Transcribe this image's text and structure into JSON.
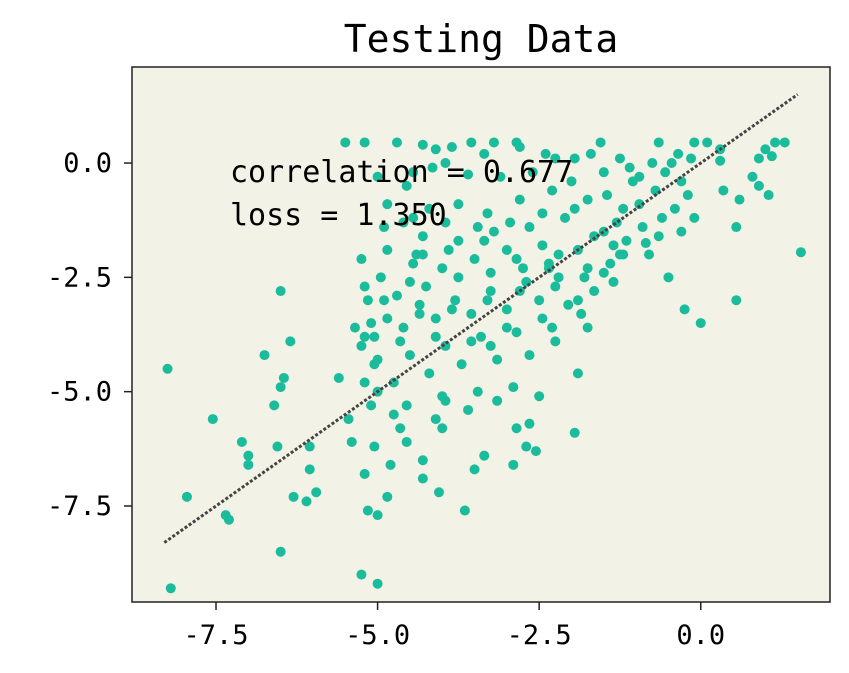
{
  "chart_data": {
    "type": "scatter",
    "title": "Testing Data",
    "xlabel": "",
    "ylabel": "",
    "xlim": [
      -8.8,
      2.0
    ],
    "ylim": [
      -9.6,
      2.1
    ],
    "x_ticks": [
      -7.5,
      -5.0,
      -2.5,
      0.0
    ],
    "x_tick_labels": [
      "-7.5",
      "-5.0",
      "-2.5",
      "0.0"
    ],
    "y_ticks": [
      0.0,
      -2.5,
      -5.0,
      -7.5
    ],
    "y_tick_labels": [
      "0.0",
      "-2.5",
      "-5.0",
      "-7.5"
    ],
    "grid": false,
    "annotations": [
      "correlation = 0.677",
      "loss = 1.350"
    ],
    "colors": {
      "points": "#1abc9c",
      "background": "#f2f2e6",
      "fit_line": "#444444"
    },
    "fit_line": {
      "style": "dotted",
      "x": [
        -8.3,
        1.5
      ],
      "y": [
        -8.3,
        1.5
      ]
    },
    "points": [
      [
        -8.25,
        -4.5
      ],
      [
        -8.2,
        -9.3
      ],
      [
        -7.95,
        -7.3
      ],
      [
        -7.55,
        -5.6
      ],
      [
        -7.3,
        -7.8
      ],
      [
        -7.35,
        -7.7
      ],
      [
        -7.1,
        -6.1
      ],
      [
        -7.0,
        -6.4
      ],
      [
        -7.0,
        -6.6
      ],
      [
        -6.75,
        -4.2
      ],
      [
        -6.6,
        -5.3
      ],
      [
        -6.55,
        -6.2
      ],
      [
        -6.5,
        -4.9
      ],
      [
        -6.45,
        -4.7
      ],
      [
        -6.5,
        -2.8
      ],
      [
        -6.5,
        -8.5
      ],
      [
        -6.35,
        -3.9
      ],
      [
        -6.3,
        -7.3
      ],
      [
        -6.1,
        -7.4
      ],
      [
        -6.05,
        -6.2
      ],
      [
        -6.05,
        -6.7
      ],
      [
        -5.95,
        -7.2
      ],
      [
        -5.6,
        -4.7
      ],
      [
        -5.4,
        -6.1
      ],
      [
        -5.45,
        -5.6
      ],
      [
        -5.35,
        -3.6
      ],
      [
        -5.2,
        -3.8
      ],
      [
        -5.15,
        -7.6
      ],
      [
        -5.2,
        -6.8
      ],
      [
        -5.25,
        -9.0
      ],
      [
        -5.2,
        -2.7
      ],
      [
        -5.0,
        -9.2
      ],
      [
        -5.0,
        -7.7
      ],
      [
        -5.05,
        -6.2
      ],
      [
        -5.1,
        -5.3
      ],
      [
        -5.05,
        -4.4
      ],
      [
        -5.0,
        -0.3
      ],
      [
        -5.25,
        -2.1
      ],
      [
        -5.5,
        0.45
      ],
      [
        -5.2,
        0.45
      ],
      [
        -4.85,
        -7.3
      ],
      [
        -4.8,
        -6.6
      ],
      [
        -4.75,
        -5.5
      ],
      [
        -4.55,
        -6.1
      ],
      [
        -4.45,
        -2.2
      ],
      [
        -4.3,
        -6.5
      ],
      [
        -4.3,
        -6.9
      ],
      [
        -4.3,
        -2.0
      ],
      [
        -4.05,
        -7.2
      ],
      [
        -4.0,
        -5.8
      ],
      [
        -3.95,
        -5.2
      ],
      [
        -3.65,
        -7.6
      ],
      [
        -3.5,
        -6.7
      ],
      [
        -3.35,
        -6.4
      ],
      [
        -3.25,
        -4.0
      ],
      [
        -3.15,
        -5.2
      ],
      [
        -2.9,
        -6.6
      ],
      [
        -2.85,
        -5.8
      ],
      [
        -2.7,
        -6.2
      ],
      [
        -2.65,
        -5.7
      ],
      [
        -2.55,
        -6.3
      ],
      [
        -2.5,
        -5.1
      ],
      [
        -2.35,
        -2.2
      ],
      [
        -2.25,
        -3.9
      ],
      [
        -1.95,
        -5.9
      ],
      [
        -1.85,
        -3.3
      ],
      [
        -1.75,
        -3.6
      ],
      [
        -1.9,
        -4.6
      ],
      [
        -1.5,
        -2.4
      ],
      [
        -1.35,
        -1.8
      ],
      [
        -1.25,
        -2.0
      ],
      [
        -0.85,
        -1.75
      ],
      [
        -0.5,
        -2.5
      ],
      [
        -0.3,
        -1.5
      ],
      [
        -0.25,
        -3.2
      ],
      [
        0.0,
        -3.5
      ],
      [
        -0.1,
        0.45
      ],
      [
        0.1,
        0.45
      ],
      [
        0.3,
        0.3
      ],
      [
        0.3,
        0.05
      ],
      [
        0.55,
        -1.4
      ],
      [
        0.55,
        -3.0
      ],
      [
        0.6,
        -0.8
      ],
      [
        0.8,
        -0.3
      ],
      [
        0.9,
        0.1
      ],
      [
        1.0,
        0.3
      ],
      [
        1.1,
        0.15
      ],
      [
        1.15,
        0.45
      ],
      [
        1.3,
        0.45
      ],
      [
        1.55,
        -1.95
      ],
      [
        1.05,
        -0.7
      ],
      [
        0.9,
        -0.5
      ],
      [
        -4.7,
        0.45
      ],
      [
        -4.3,
        0.4
      ],
      [
        -4.1,
        0.3
      ],
      [
        -3.85,
        0.35
      ],
      [
        -3.55,
        0.45
      ],
      [
        -3.2,
        0.45
      ],
      [
        -2.85,
        0.45
      ],
      [
        -2.4,
        0.2
      ],
      [
        -1.95,
        0.1
      ],
      [
        -1.55,
        0.45
      ],
      [
        -1.25,
        0.1
      ],
      [
        -0.65,
        0.45
      ],
      [
        -0.35,
        0.2
      ],
      [
        -0.75,
        0.0
      ],
      [
        -1.05,
        -0.4
      ],
      [
        -1.5,
        -0.2
      ],
      [
        -2.0,
        -0.4
      ],
      [
        -2.6,
        -0.2
      ],
      [
        -3.1,
        -0.3
      ],
      [
        -3.6,
        -0.25
      ],
      [
        -4.15,
        -0.1
      ],
      [
        -4.55,
        -0.5
      ],
      [
        -4.85,
        -0.9
      ],
      [
        -4.6,
        -1.3
      ],
      [
        -4.2,
        -1.0
      ],
      [
        -3.75,
        -0.9
      ],
      [
        -3.3,
        -1.1
      ],
      [
        -2.8,
        -0.8
      ],
      [
        -2.3,
        -0.6
      ],
      [
        -1.75,
        -0.8
      ],
      [
        -1.2,
        -1.0
      ],
      [
        -0.7,
        -0.6
      ],
      [
        -0.3,
        -0.4
      ],
      [
        -0.4,
        -1.0
      ],
      [
        -0.9,
        -1.4
      ],
      [
        -1.5,
        -1.5
      ],
      [
        -2.1,
        -1.2
      ],
      [
        -2.65,
        -1.4
      ],
      [
        -3.2,
        -1.5
      ],
      [
        -3.75,
        -1.7
      ],
      [
        -4.3,
        -1.6
      ],
      [
        -4.85,
        -1.9
      ],
      [
        -4.5,
        -2.6
      ],
      [
        -4.0,
        -2.3
      ],
      [
        -3.5,
        -2.1
      ],
      [
        -3.0,
        -1.9
      ],
      [
        -2.45,
        -1.8
      ],
      [
        -1.9,
        -1.9
      ],
      [
        -1.4,
        -2.2
      ],
      [
        -1.65,
        -2.8
      ],
      [
        -2.2,
        -2.5
      ],
      [
        -2.7,
        -2.6
      ],
      [
        -3.25,
        -2.8
      ],
      [
        -3.8,
        -3.0
      ],
      [
        -4.35,
        -3.1
      ],
      [
        -4.9,
        -3.0
      ],
      [
        -5.1,
        -3.5
      ],
      [
        -4.6,
        -3.6
      ],
      [
        -4.1,
        -3.4
      ],
      [
        -3.55,
        -3.3
      ],
      [
        -3.0,
        -3.2
      ],
      [
        -2.5,
        -3.0
      ],
      [
        -2.05,
        -3.1
      ],
      [
        -2.3,
        -3.6
      ],
      [
        -2.85,
        -3.7
      ],
      [
        -3.4,
        -3.8
      ],
      [
        -3.95,
        -4.0
      ],
      [
        -4.5,
        -4.2
      ],
      [
        -5.0,
        -4.3
      ],
      [
        -4.75,
        -4.8
      ],
      [
        -4.2,
        -4.6
      ],
      [
        -3.7,
        -4.4
      ],
      [
        -3.15,
        -4.3
      ],
      [
        -2.65,
        -4.2
      ],
      [
        -2.9,
        -4.9
      ],
      [
        -3.45,
        -5.0
      ],
      [
        -4.0,
        -5.1
      ],
      [
        -4.55,
        -5.3
      ],
      [
        -5.0,
        -5.0
      ],
      [
        -4.65,
        -5.8
      ],
      [
        -4.1,
        -5.6
      ],
      [
        -3.6,
        -5.4
      ],
      [
        -5.2,
        -4.8
      ],
      [
        -5.25,
        -4.0
      ],
      [
        -5.15,
        -3.0
      ],
      [
        -4.95,
        -2.5
      ],
      [
        -4.4,
        -2.0
      ],
      [
        -3.9,
        -1.9
      ],
      [
        -3.35,
        -1.7
      ],
      [
        -2.85,
        -2.1
      ],
      [
        -2.35,
        -2.3
      ],
      [
        -1.8,
        -2.5
      ],
      [
        -1.3,
        -1.3
      ],
      [
        -0.95,
        -0.9
      ],
      [
        -0.55,
        -0.2
      ],
      [
        -0.15,
        0.1
      ],
      [
        -1.1,
        -0.1
      ],
      [
        -1.7,
        0.2
      ],
      [
        -2.25,
        0.1
      ],
      [
        -2.8,
        0.35
      ],
      [
        -3.35,
        0.2
      ],
      [
        -3.95,
        0.0
      ],
      [
        -4.45,
        -0.2
      ],
      [
        -4.7,
        -2.9
      ],
      [
        -4.25,
        -2.7
      ],
      [
        -3.75,
        -2.5
      ],
      [
        -3.25,
        -2.4
      ],
      [
        -2.75,
        -2.3
      ],
      [
        -2.2,
        -2.0
      ],
      [
        -1.65,
        -1.6
      ],
      [
        -1.15,
        -1.7
      ],
      [
        -0.6,
        -1.2
      ],
      [
        -0.2,
        -0.7
      ],
      [
        -0.8,
        -2.0
      ],
      [
        -1.35,
        -2.6
      ],
      [
        -1.9,
        -3.0
      ],
      [
        -2.45,
        -3.4
      ],
      [
        -3.0,
        -3.6
      ],
      [
        -3.55,
        -3.9
      ],
      [
        -4.1,
        -3.8
      ],
      [
        -4.65,
        -3.9
      ],
      [
        -5.05,
        -3.8
      ],
      [
        -4.85,
        -3.4
      ],
      [
        -4.35,
        -3.3
      ],
      [
        -3.85,
        -3.2
      ],
      [
        -3.3,
        -3.0
      ],
      [
        -2.8,
        -2.8
      ],
      [
        -2.25,
        -2.7
      ],
      [
        -1.75,
        -2.3
      ],
      [
        -1.2,
        -2.0
      ],
      [
        -0.65,
        -1.6
      ],
      [
        -0.1,
        -1.2
      ],
      [
        0.35,
        -0.6
      ],
      [
        -4.9,
        -1.4
      ],
      [
        -4.45,
        -1.2
      ],
      [
        -3.95,
        -1.3
      ],
      [
        -3.45,
        -1.4
      ],
      [
        -2.95,
        -1.3
      ],
      [
        -2.45,
        -1.1
      ],
      [
        -1.95,
        -1.0
      ],
      [
        -1.45,
        -0.7
      ],
      [
        -0.95,
        -0.3
      ],
      [
        -0.45,
        0.0
      ]
    ]
  }
}
